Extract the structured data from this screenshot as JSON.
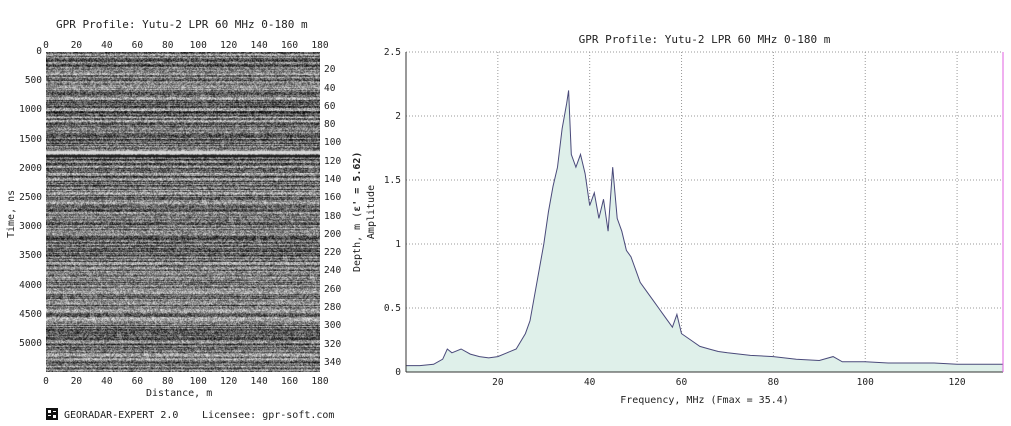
{
  "left_panel": {
    "title": "GPR Profile: Yutu-2 LPR 60 MHz 0-180 m",
    "x_label": "Distance, m",
    "y_label": "Time, ns",
    "right_label_prefix": "Depth, m (",
    "right_label_eps": "ε' = 5.62)",
    "x_ticks": [
      "0",
      "20",
      "40",
      "60",
      "80",
      "100",
      "120",
      "140",
      "160",
      "180"
    ],
    "y_ticks": [
      "0",
      "500",
      "1000",
      "1500",
      "2000",
      "2500",
      "3000",
      "3500",
      "4000",
      "4500",
      "5000"
    ],
    "depth_ticks": [
      "20",
      "40",
      "60",
      "80",
      "100",
      "120",
      "140",
      "160",
      "180",
      "200",
      "220",
      "240",
      "260",
      "280",
      "300",
      "320",
      "340"
    ],
    "x_range": [
      0,
      180
    ],
    "time_range": [
      0,
      5480
    ],
    "depth_range": [
      0,
      350
    ]
  },
  "chart_data": {
    "type": "area",
    "title": "GPR Profile: Yutu-2 LPR 60 MHz 0-180 m",
    "xlabel": "Frequency, MHz (Fmax = 35.4)",
    "ylabel": "Amplitude",
    "xlim": [
      0,
      130
    ],
    "ylim": [
      0,
      2.5
    ],
    "x_ticks": [
      "20",
      "40",
      "60",
      "80",
      "100",
      "120"
    ],
    "y_ticks": [
      "0",
      "0.5",
      "1",
      "1.5",
      "2",
      "2.5"
    ],
    "grid": true,
    "fill_color": "#dff0ea",
    "line_color": "#4a4a7a",
    "x": [
      0,
      3,
      6,
      8,
      9,
      10,
      12,
      14,
      16,
      18,
      20,
      22,
      24,
      26,
      27,
      28,
      29,
      30,
      31,
      32,
      33,
      34,
      35,
      35.4,
      36,
      37,
      38,
      39,
      40,
      41,
      42,
      43,
      44,
      45,
      46,
      47,
      48,
      49,
      50,
      51,
      52,
      53,
      54,
      55,
      56,
      57,
      58,
      59,
      60,
      62,
      64,
      66,
      68,
      70,
      75,
      80,
      85,
      90,
      93,
      95,
      100,
      105,
      110,
      115,
      120,
      125,
      130
    ],
    "values": [
      0.05,
      0.05,
      0.06,
      0.1,
      0.18,
      0.15,
      0.18,
      0.14,
      0.12,
      0.11,
      0.12,
      0.15,
      0.18,
      0.3,
      0.4,
      0.6,
      0.8,
      1.0,
      1.25,
      1.45,
      1.6,
      1.9,
      2.1,
      2.2,
      1.7,
      1.6,
      1.7,
      1.55,
      1.3,
      1.4,
      1.2,
      1.35,
      1.1,
      1.6,
      1.2,
      1.1,
      0.95,
      0.9,
      0.8,
      0.7,
      0.65,
      0.6,
      0.55,
      0.5,
      0.45,
      0.4,
      0.35,
      0.45,
      0.3,
      0.25,
      0.2,
      0.18,
      0.16,
      0.15,
      0.13,
      0.12,
      0.1,
      0.09,
      0.12,
      0.08,
      0.08,
      0.07,
      0.07,
      0.07,
      0.06,
      0.06,
      0.06
    ]
  },
  "footer": {
    "logo_icon": "georadar-logo-icon",
    "app_name": "GEORADAR-EXPERT 2.0",
    "licensee": "Licensee: gpr-soft.com"
  }
}
